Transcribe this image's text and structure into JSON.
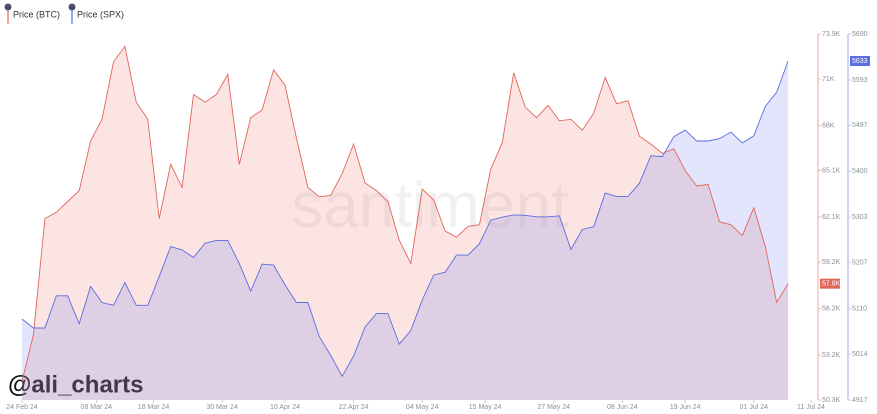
{
  "chart_data": {
    "type": "area",
    "watermark": "santiment",
    "handle": "@ali_charts",
    "x": [
      "2024-02-24",
      "2024-02-26",
      "2024-02-28",
      "2024-03-01",
      "2024-03-03",
      "2024-03-05",
      "2024-03-07",
      "2024-03-09",
      "2024-03-11",
      "2024-03-13",
      "2024-03-15",
      "2024-03-17",
      "2024-03-19",
      "2024-03-21",
      "2024-03-23",
      "2024-03-25",
      "2024-03-27",
      "2024-03-29",
      "2024-03-31",
      "2024-04-02",
      "2024-04-04",
      "2024-04-06",
      "2024-04-08",
      "2024-04-10",
      "2024-04-12",
      "2024-04-14",
      "2024-04-16",
      "2024-04-18",
      "2024-04-20",
      "2024-04-22",
      "2024-04-24",
      "2024-04-26",
      "2024-04-28",
      "2024-04-30",
      "2024-05-02",
      "2024-05-04",
      "2024-05-06",
      "2024-05-08",
      "2024-05-10",
      "2024-05-12",
      "2024-05-14",
      "2024-05-16",
      "2024-05-18",
      "2024-05-20",
      "2024-05-22",
      "2024-05-24",
      "2024-05-26",
      "2024-05-28",
      "2024-05-30",
      "2024-06-01",
      "2024-06-03",
      "2024-06-05",
      "2024-06-07",
      "2024-06-09",
      "2024-06-11",
      "2024-06-13",
      "2024-06-15",
      "2024-06-17",
      "2024-06-19",
      "2024-06-21",
      "2024-06-23",
      "2024-06-25",
      "2024-06-27",
      "2024-06-29",
      "2024-07-01",
      "2024-07-03",
      "2024-07-05",
      "2024-07-07"
    ],
    "xlim": [
      "2024-02-24",
      "2024-07-11"
    ],
    "xticks": [
      {
        "value": "2024-02-24",
        "label": "24 Feb 24"
      },
      {
        "value": "2024-03-08",
        "label": "08 Mar 24"
      },
      {
        "value": "2024-03-18",
        "label": "18 Mar 24"
      },
      {
        "value": "2024-03-30",
        "label": "30 Mar 24"
      },
      {
        "value": "2024-04-10",
        "label": "10 Apr 24"
      },
      {
        "value": "2024-04-22",
        "label": "22 Apr 24"
      },
      {
        "value": "2024-05-04",
        "label": "04 May 24"
      },
      {
        "value": "2024-05-15",
        "label": "15 May 24"
      },
      {
        "value": "2024-05-27",
        "label": "27 May 24"
      },
      {
        "value": "2024-06-08",
        "label": "08 Jun 24"
      },
      {
        "value": "2024-06-19",
        "label": "19 Jun 24"
      },
      {
        "value": "2024-07-01",
        "label": "01 Jul 24"
      },
      {
        "value": "2024-07-11",
        "label": "11 Jul 24"
      }
    ],
    "ylim": [
      50300,
      73900
    ],
    "yticks": [
      {
        "value": 50300,
        "label": "50.3K"
      },
      {
        "value": 53200,
        "label": "53.2K"
      },
      {
        "value": 56200,
        "label": "56.2K"
      },
      {
        "value": 59200,
        "label": "59.2K"
      },
      {
        "value": 62100,
        "label": "62.1K"
      },
      {
        "value": 65100,
        "label": "65.1K"
      },
      {
        "value": 68000,
        "label": "68K"
      },
      {
        "value": 71000,
        "label": "71K"
      },
      {
        "value": 73900,
        "label": "73.9K"
      }
    ],
    "y2lim": [
      4917,
      5690
    ],
    "y2ticks": [
      4917,
      5014,
      5110,
      5207,
      5303,
      5400,
      5497,
      5593,
      5690
    ],
    "series": [
      {
        "name": "Price (BTC)",
        "color": "#e0665a",
        "values": [
          51500,
          54500,
          62000,
          62400,
          63100,
          63800,
          67000,
          68400,
          72100,
          73100,
          69500,
          68400,
          62000,
          65500,
          64000,
          70000,
          69500,
          70000,
          71300,
          65500,
          68500,
          69000,
          71600,
          70600,
          67200,
          64000,
          63400,
          63500,
          64900,
          66800,
          64300,
          63800,
          63100,
          60600,
          59100,
          63900,
          63200,
          61200,
          60800,
          61500,
          61600,
          65200,
          66900,
          71400,
          69200,
          68500,
          69300,
          68300,
          68400,
          67700,
          68800,
          71100,
          69400,
          69600,
          67300,
          66800,
          66200,
          66500,
          65100,
          64100,
          64200,
          61800,
          61600,
          60900,
          62700,
          60200,
          56600,
          57800
        ],
        "value_labels": [
          null,
          null,
          null,
          null,
          null,
          null,
          null,
          null,
          null,
          null,
          null,
          null,
          null,
          null,
          null,
          null,
          null,
          null,
          null,
          null,
          null,
          null,
          null,
          null,
          null,
          null,
          null,
          null,
          null,
          null,
          null,
          null,
          null,
          null,
          null,
          null,
          null,
          null,
          null,
          null,
          null,
          null,
          null,
          null,
          null,
          null,
          null,
          null,
          null,
          null,
          null,
          null,
          null,
          null,
          null,
          null,
          null,
          null,
          null,
          null,
          null,
          null,
          null,
          null,
          null,
          null,
          null,
          "57.8K"
        ]
      },
      {
        "name": "Price (SPX)",
        "color": "#5a6ee0",
        "axis": "y2",
        "values": [
          5088,
          5069,
          5069,
          5137,
          5137,
          5078,
          5157,
          5123,
          5117,
          5165,
          5117,
          5117,
          5178,
          5241,
          5234,
          5218,
          5248,
          5254,
          5254,
          5205,
          5147,
          5204,
          5202,
          5160,
          5123,
          5123,
          5051,
          5011,
          4967,
          5010,
          5071,
          5100,
          5100,
          5035,
          5064,
          5128,
          5181,
          5187,
          5223,
          5223,
          5247,
          5297,
          5303,
          5308,
          5307,
          5304,
          5304,
          5306,
          5235,
          5277,
          5283,
          5354,
          5347,
          5347,
          5375,
          5433,
          5431,
          5473,
          5487,
          5464,
          5464,
          5469,
          5483,
          5460,
          5475,
          5537,
          5567,
          5633
        ],
        "value_labels": [
          null,
          null,
          null,
          null,
          null,
          null,
          null,
          null,
          null,
          null,
          null,
          null,
          null,
          null,
          null,
          null,
          null,
          null,
          null,
          null,
          null,
          null,
          null,
          null,
          null,
          null,
          null,
          null,
          null,
          null,
          null,
          null,
          null,
          null,
          null,
          null,
          null,
          null,
          null,
          null,
          null,
          null,
          null,
          null,
          null,
          null,
          null,
          null,
          null,
          null,
          null,
          null,
          null,
          null,
          null,
          null,
          null,
          null,
          null,
          null,
          null,
          null,
          null,
          null,
          null,
          null,
          null,
          "5633"
        ]
      }
    ]
  }
}
